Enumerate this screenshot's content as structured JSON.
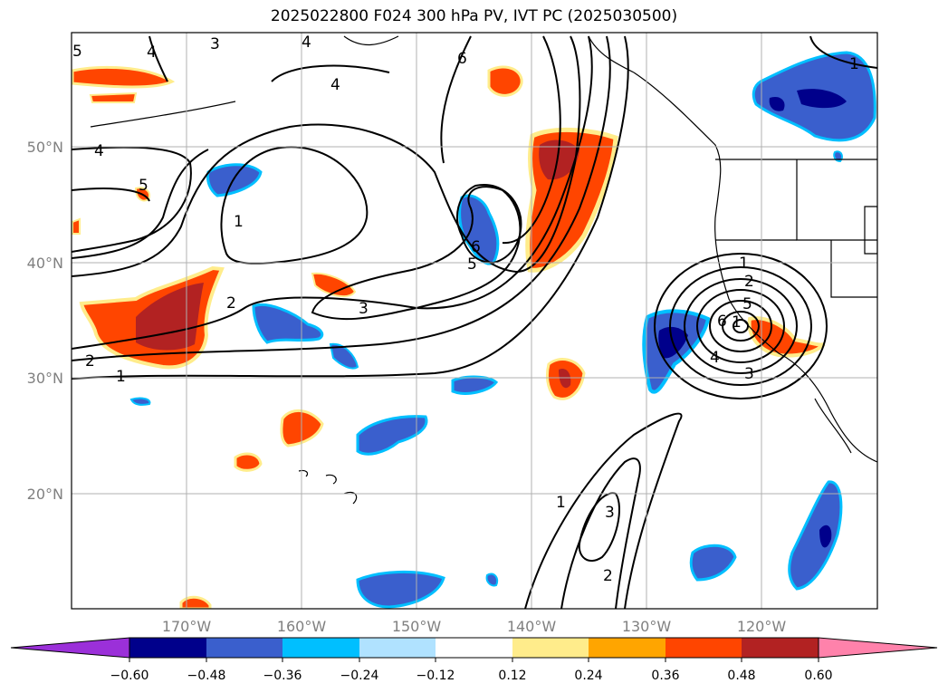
{
  "title": "2025022800 F024 300 hPa PV, IVT PC (2025030500)",
  "longitude_labels": [
    "170°W",
    "160°W",
    "150°W",
    "140°W",
    "130°W",
    "120°W"
  ],
  "latitude_labels": [
    "50°N",
    "40°N",
    "30°N",
    "20°N"
  ],
  "colorbar": {
    "tick_labels": [
      "−0.60",
      "−0.48",
      "−0.36",
      "−0.24",
      "−0.12",
      "0.12",
      "0.24",
      "0.36",
      "0.48",
      "0.60"
    ],
    "colors": [
      "#9b30d9",
      "#00008b",
      "#3a5fcd",
      "#00bfff",
      "#b0e2ff",
      "#ffffff",
      "#ffec8b",
      "#ffa500",
      "#ff4500",
      "#b22222",
      "#ff82ab"
    ]
  },
  "contour_labels": [
    "5",
    "4",
    "3",
    "4",
    "4",
    "6",
    "1",
    "1",
    "4",
    "5",
    "1",
    "2",
    "3",
    "6",
    "5",
    "1",
    "2",
    "5",
    "6",
    "1",
    "4",
    "3",
    "2",
    "1",
    "3",
    "2"
  ]
}
